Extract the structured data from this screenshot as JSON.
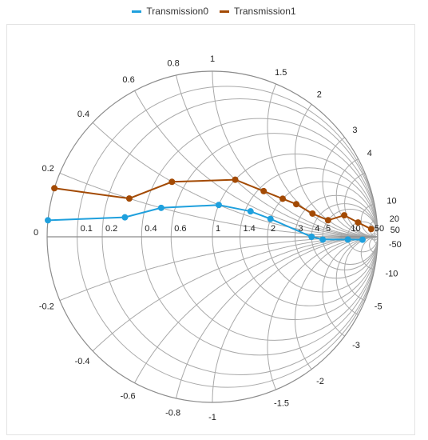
{
  "chart_data": {
    "type": "smith",
    "title": "",
    "legend_position": "top-center",
    "grid": true,
    "colors": {
      "grid": "#a9a9a9",
      "axis": "#8c8c8c"
    },
    "resistance_labels": [
      "0",
      "0.1",
      "0.2",
      "0.4",
      "0.6",
      "1",
      "1.4",
      "2",
      "3",
      "4",
      "5",
      "10",
      "50"
    ],
    "reactance_labels_top": [
      "0.2",
      "0.4",
      "0.6",
      "0.8",
      "1",
      "1.5",
      "2",
      "3",
      "4",
      "10",
      "20",
      "50"
    ],
    "reactance_labels_bottom": [
      "-0.2",
      "-0.4",
      "-0.6",
      "-0.8",
      "-1",
      "-1.5",
      "-2",
      "-3",
      "-5",
      "-10",
      "-50"
    ],
    "series": [
      {
        "name": "Transmission0",
        "color": "#1fa0dd",
        "points": [
          {
            "r": 0,
            "x": 0.05
          },
          {
            "r": 0.3,
            "x": 0.1
          },
          {
            "r": 0.5,
            "x": 0.2
          },
          {
            "r": 1.0,
            "x": 0.4
          },
          {
            "r": 1.5,
            "x": 0.5
          },
          {
            "r": 2.0,
            "x": 0.5
          },
          {
            "r": 4.0,
            "x": 0.0
          },
          {
            "r": 5.0,
            "x": -0.3
          },
          {
            "r": 10.0,
            "x": -1.0
          },
          {
            "r": 20.0,
            "x": -4.0
          }
        ]
      },
      {
        "name": "Transmission1",
        "color": "#a34a04",
        "points": [
          {
            "r": 0,
            "x": 0.15
          },
          {
            "r": 0.3,
            "x": 0.2
          },
          {
            "r": 0.5,
            "x": 0.4
          },
          {
            "r": 1.0,
            "x": 0.8
          },
          {
            "r": 1.5,
            "x": 1.0
          },
          {
            "r": 2.0,
            "x": 1.2
          },
          {
            "r": 2.5,
            "x": 1.4
          },
          {
            "r": 3.5,
            "x": 1.6
          },
          {
            "r": 5.0,
            "x": 2.0
          },
          {
            "r": 6.0,
            "x": 4.5
          },
          {
            "r": 10.0,
            "x": 8.0
          },
          {
            "r": 20.0,
            "x": 25.0
          }
        ]
      }
    ]
  }
}
